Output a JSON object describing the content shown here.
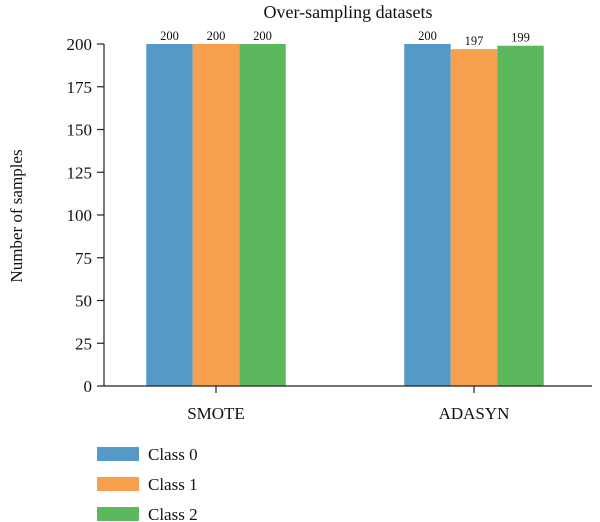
{
  "chart_data": {
    "type": "bar",
    "title": "Over-sampling datasets",
    "xlabel": "",
    "ylabel": "Number of samples",
    "ylim": [
      0,
      200
    ],
    "yticks": [
      0,
      25,
      50,
      75,
      100,
      125,
      150,
      175,
      200
    ],
    "categories": [
      "SMOTE",
      "ADASYN"
    ],
    "series": [
      {
        "name": "Class 0",
        "color": "#5599c7",
        "values": [
          200,
          200
        ]
      },
      {
        "name": "Class 1",
        "color": "#f6a04d",
        "values": [
          200,
          197
        ]
      },
      {
        "name": "Class 2",
        "color": "#5cb85c",
        "values": [
          200,
          199
        ]
      }
    ],
    "data_labels": [
      [
        "200",
        "200"
      ],
      [
        "200",
        "197"
      ],
      [
        "200",
        "199"
      ]
    ],
    "legend_position": "bottom-left",
    "grid": false
  }
}
